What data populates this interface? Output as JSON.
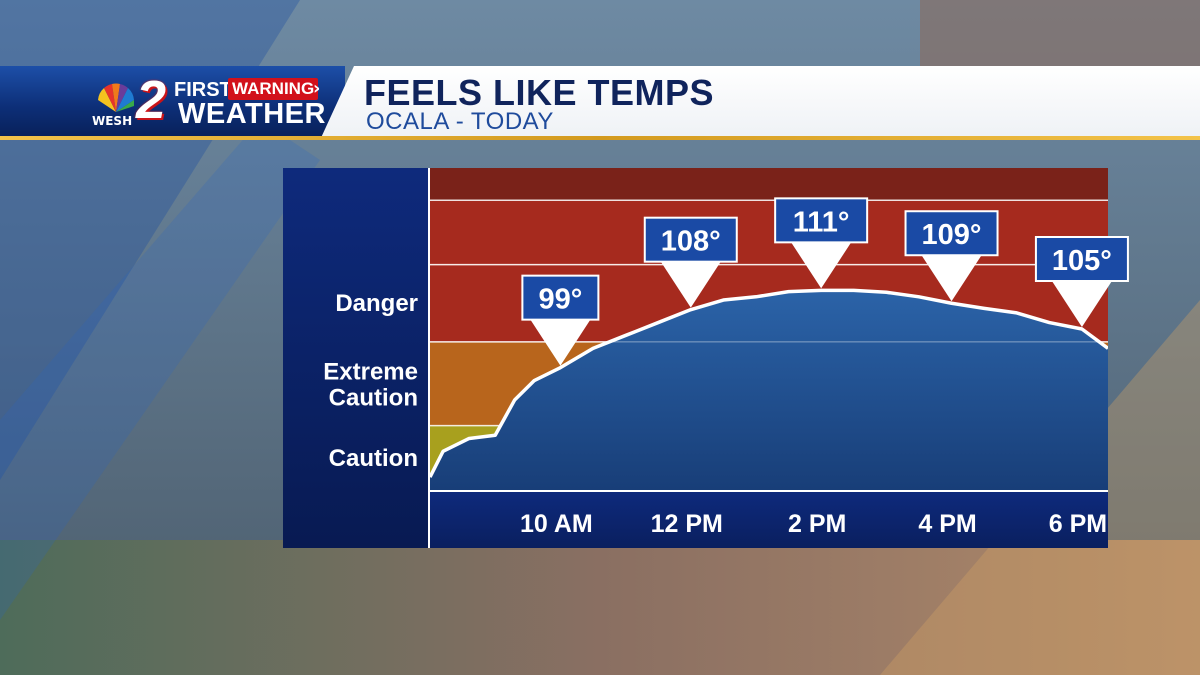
{
  "brand": {
    "station": "WESH",
    "channel": "2",
    "segment_first": "FIRST",
    "segment_warning": "WARNING",
    "segment_weather": "WEATHER"
  },
  "header": {
    "title": "FEELS LIKE TEMPS",
    "subtitle": "OCALA - TODAY"
  },
  "colors": {
    "danger": "#a62a1e",
    "extreme_danger": "#7a2219",
    "extreme_caution": "#b8651c",
    "caution": "#a8a01e",
    "area_fill": "#1f4f92",
    "label_panel": "#0b1d5a"
  },
  "chart_data": {
    "type": "area",
    "title": "FEELS LIKE TEMPS",
    "subtitle": "OCALA - TODAY",
    "y_units": "°F",
    "ylim": [
      80,
      130
    ],
    "zones": [
      {
        "name": "Caution",
        "from": 80,
        "to": 90
      },
      {
        "name": "Extreme Caution",
        "from": 90,
        "to": 103
      },
      {
        "name": "Danger",
        "from": 103,
        "to": 125
      },
      {
        "name": "",
        "from": 125,
        "to": 130
      }
    ],
    "x_ticks": [
      "10 AM",
      "12 PM",
      "2 PM",
      "4 PM",
      "6 PM"
    ],
    "x_tick_hours": [
      10,
      12,
      14,
      16,
      18
    ],
    "curve": [
      {
        "h": 8.0,
        "v": 82
      },
      {
        "h": 8.2,
        "v": 86
      },
      {
        "h": 8.6,
        "v": 88
      },
      {
        "h": 9.0,
        "v": 88.5
      },
      {
        "h": 9.3,
        "v": 94
      },
      {
        "h": 9.6,
        "v": 97
      },
      {
        "h": 10.0,
        "v": 99
      },
      {
        "h": 10.5,
        "v": 102
      },
      {
        "h": 11.0,
        "v": 104
      },
      {
        "h": 11.5,
        "v": 106
      },
      {
        "h": 12.0,
        "v": 108
      },
      {
        "h": 12.5,
        "v": 109.5
      },
      {
        "h": 13.0,
        "v": 110
      },
      {
        "h": 13.5,
        "v": 110.8
      },
      {
        "h": 14.0,
        "v": 111
      },
      {
        "h": 14.5,
        "v": 111
      },
      {
        "h": 15.0,
        "v": 110.7
      },
      {
        "h": 15.5,
        "v": 110
      },
      {
        "h": 16.0,
        "v": 109
      },
      {
        "h": 16.5,
        "v": 108.2
      },
      {
        "h": 17.0,
        "v": 107.5
      },
      {
        "h": 17.5,
        "v": 106
      },
      {
        "h": 18.0,
        "v": 105
      },
      {
        "h": 18.4,
        "v": 102
      }
    ],
    "callouts": [
      {
        "hour": 10,
        "value": 99,
        "label": "99°"
      },
      {
        "hour": 12,
        "value": 108,
        "label": "108°"
      },
      {
        "hour": 14,
        "value": 111,
        "label": "111°"
      },
      {
        "hour": 16,
        "value": 109,
        "label": "109°"
      },
      {
        "hour": 18,
        "value": 105,
        "label": "105°"
      }
    ],
    "grid": true,
    "legend": "none"
  }
}
